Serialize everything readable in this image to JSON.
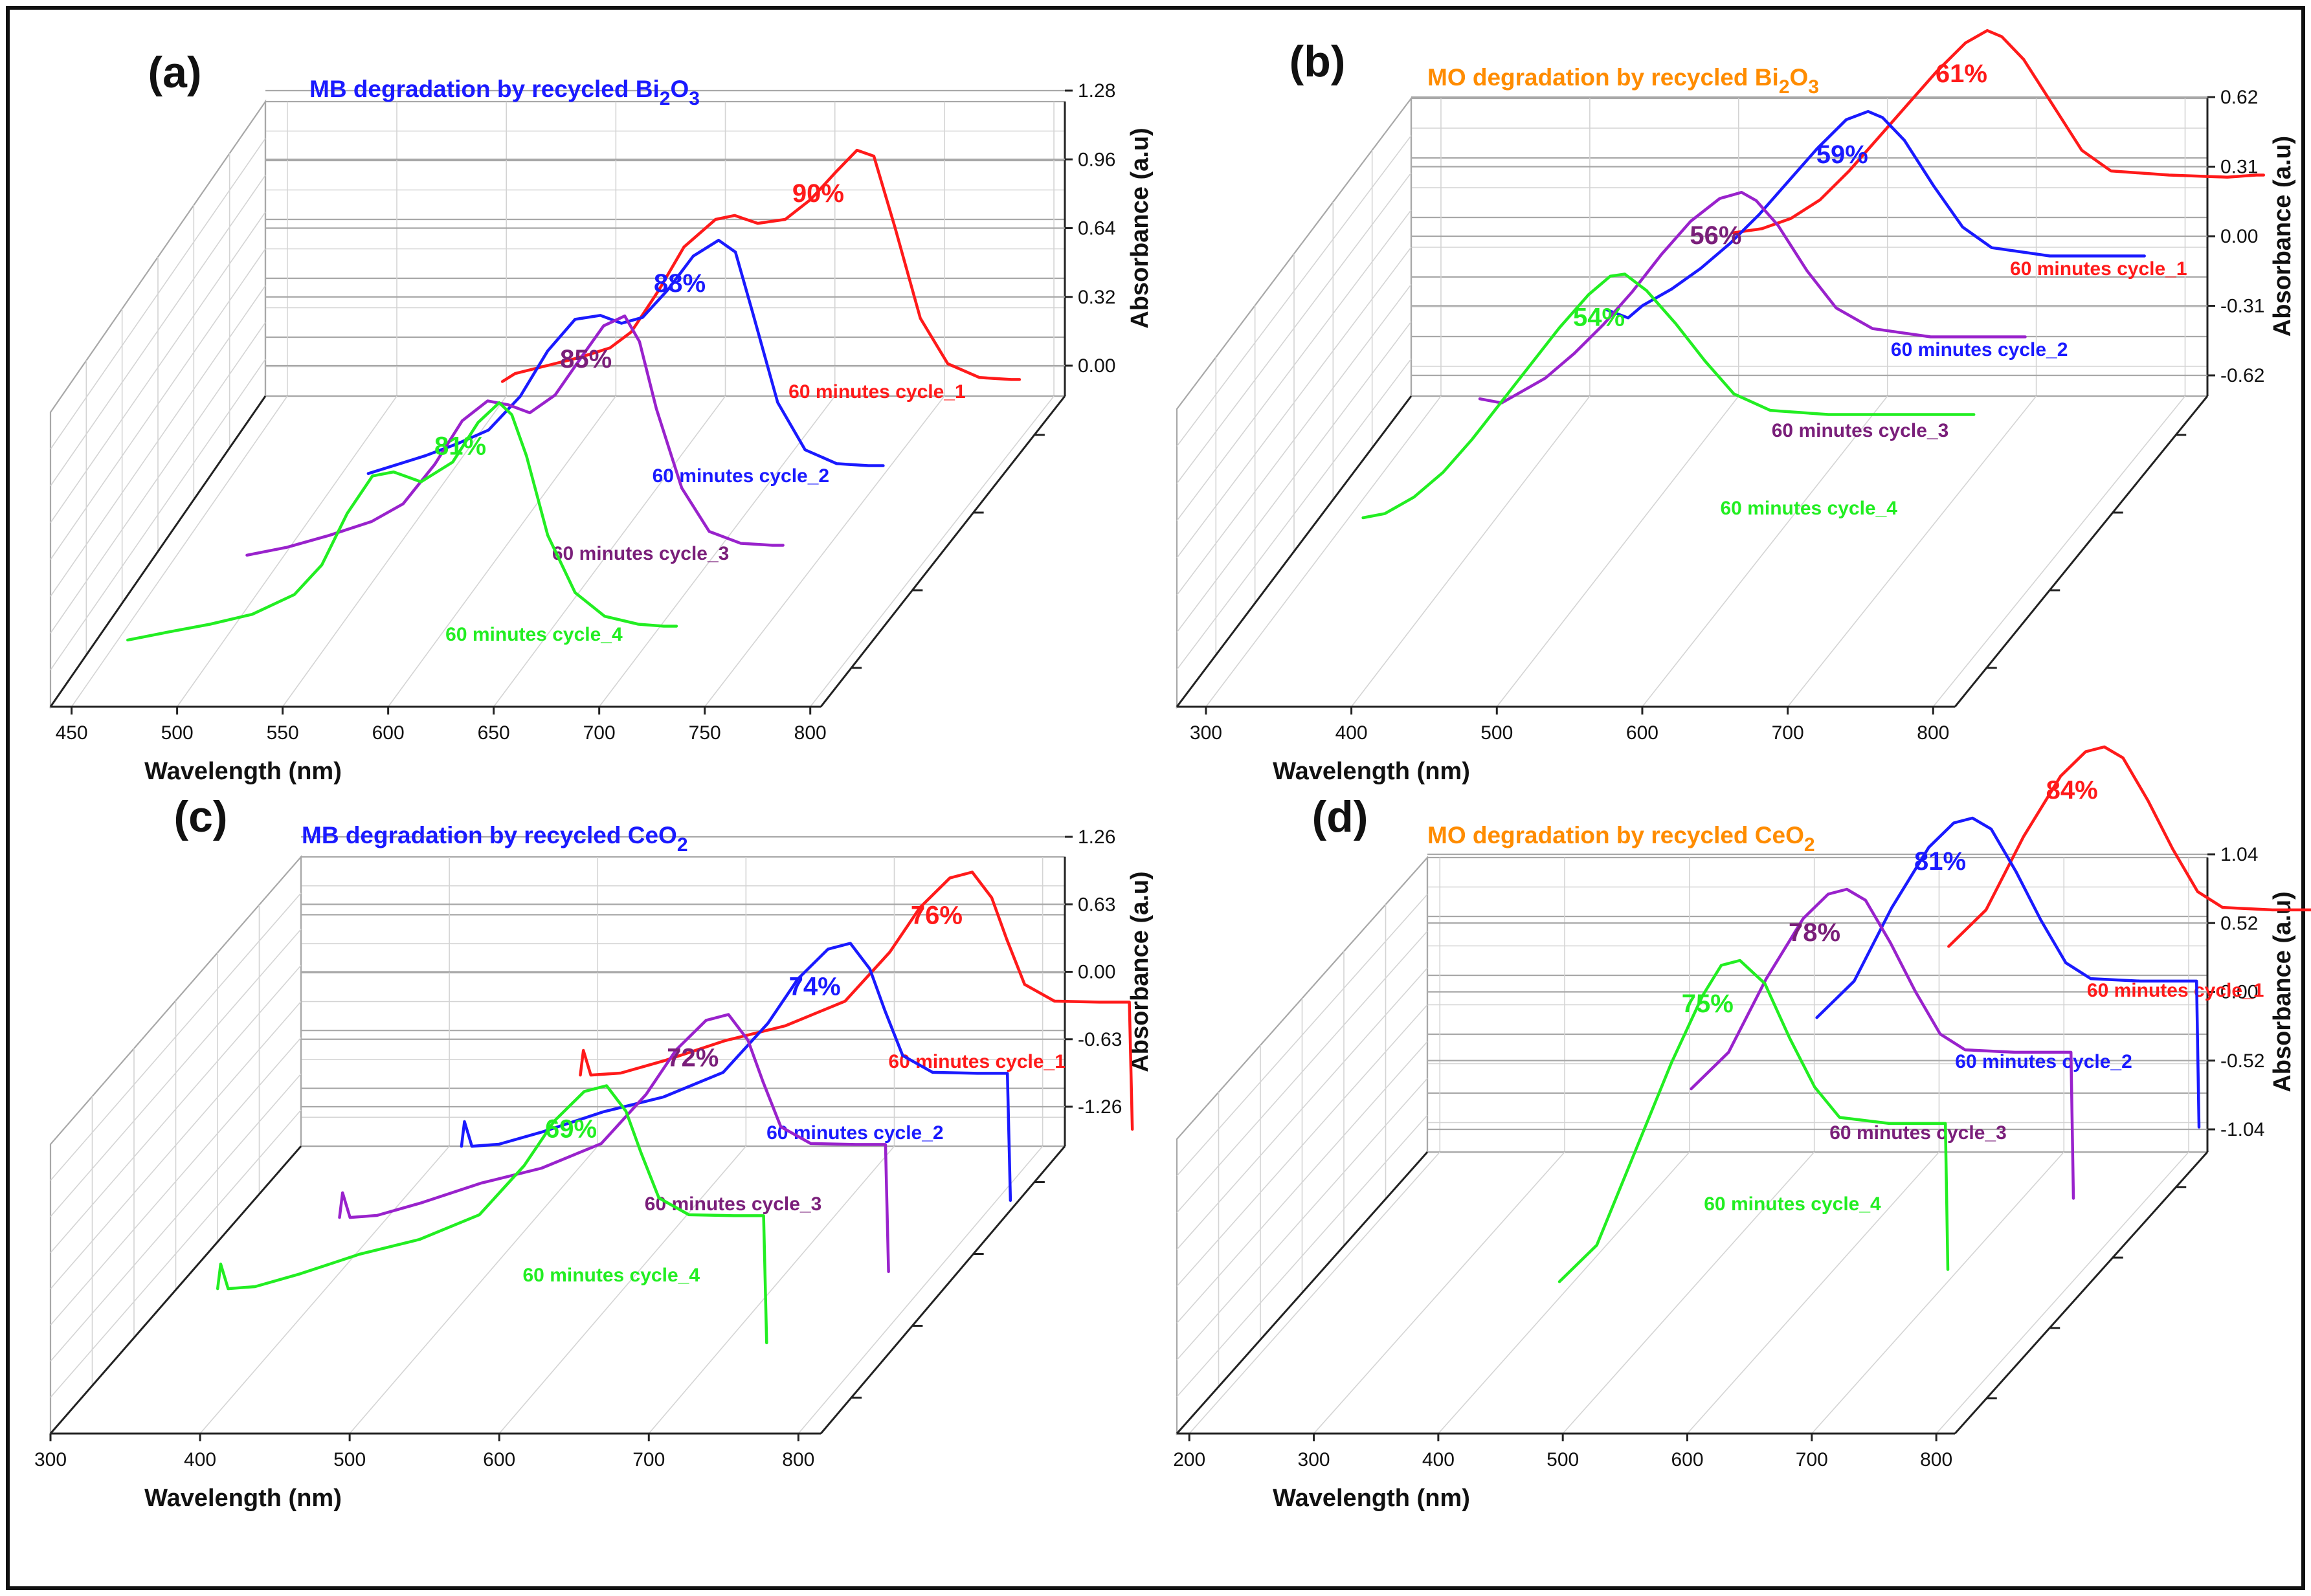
{
  "figure": {
    "colors": {
      "cycle_1": "#ff1a1a",
      "cycle_2": "#1a1aff",
      "cycle_3_label": "#7a1f7a",
      "cycle_3_line": "#9922cc",
      "cycle_4": "#22ee22",
      "title_blue": "#1a1aff",
      "title_orange": "#ff8c00"
    }
  },
  "chart_data": [
    {
      "panel": "(a)",
      "type": "line",
      "title_main": "MB degradation by recycled Bi",
      "title_parts": [
        "2",
        "O",
        "3"
      ],
      "title_color": "title_blue",
      "xlabel": "Wavelength (nm)",
      "ylabel": "Absorbance (a.u)",
      "xlim": [
        440,
        805
      ],
      "x_ticks": [
        450,
        500,
        550,
        600,
        650,
        700,
        750,
        800
      ],
      "z_ticks": [
        "1.28",
        "0.96",
        "0.64",
        "0.32",
        "0.00"
      ],
      "z_range": [
        0,
        1.28
      ],
      "series": [
        {
          "name": "60 minutes cycle_1",
          "color": "cycle_1",
          "percent": "90%",
          "x": [
            554,
            560,
            575,
            590,
            605,
            615,
            628,
            640,
            655,
            664,
            675,
            688,
            700,
            712,
            722,
            730,
            740,
            752,
            765,
            780,
            795,
            799
          ],
          "y": [
            0.1,
            0.14,
            0.18,
            0.22,
            0.27,
            0.35,
            0.56,
            0.78,
            0.92,
            0.94,
            0.9,
            0.92,
            1.02,
            1.16,
            1.27,
            1.24,
            0.88,
            0.42,
            0.19,
            0.12,
            0.11,
            0.11
          ]
        },
        {
          "name": "60 minutes cycle_2",
          "color": "cycle_2",
          "percent": "88%",
          "x": [
            518,
            530,
            545,
            560,
            575,
            590,
            603,
            616,
            628,
            638,
            648,
            660,
            672,
            684,
            692,
            700,
            712,
            725,
            740,
            755,
            762
          ],
          "y": [
            0.06,
            0.1,
            0.15,
            0.21,
            0.28,
            0.45,
            0.68,
            0.84,
            0.86,
            0.82,
            0.85,
            0.99,
            1.16,
            1.24,
            1.18,
            0.88,
            0.42,
            0.18,
            0.11,
            0.1,
            0.1
          ]
        },
        {
          "name": "60 minutes cycle_3",
          "color": "cycle_3_line",
          "label_color": "cycle_3_label",
          "percent": "85%",
          "x": [
            486,
            505,
            525,
            545,
            560,
            575,
            588,
            600,
            610,
            620,
            632,
            645,
            655,
            665,
            672,
            680,
            692,
            705,
            720,
            735,
            740
          ],
          "y": [
            0.04,
            0.08,
            0.14,
            0.21,
            0.3,
            0.5,
            0.72,
            0.82,
            0.8,
            0.76,
            0.85,
            1.05,
            1.2,
            1.25,
            1.12,
            0.78,
            0.38,
            0.16,
            0.1,
            0.09,
            0.09
          ]
        },
        {
          "name": "60 minutes cycle_4",
          "color": "cycle_4",
          "percent": "81%",
          "x": [
            456,
            475,
            495,
            515,
            535,
            548,
            560,
            572,
            582,
            595,
            610,
            622,
            632,
            638,
            645,
            655,
            668,
            682,
            698,
            710,
            716
          ],
          "y": [
            0.02,
            0.06,
            0.1,
            0.15,
            0.25,
            0.4,
            0.66,
            0.85,
            0.87,
            0.82,
            0.92,
            1.12,
            1.22,
            1.16,
            0.95,
            0.55,
            0.26,
            0.14,
            0.1,
            0.09,
            0.09
          ]
        }
      ]
    },
    {
      "panel": "(b)",
      "type": "line",
      "title_main": "MO degradation by recycled Bi",
      "title_parts": [
        "2",
        "O",
        "3"
      ],
      "title_color": "title_orange",
      "xlabel": "Wavelength (nm)",
      "ylabel": "Absorbance (a.u)",
      "xlim": [
        280,
        815
      ],
      "x_ticks": [
        300,
        400,
        500,
        600,
        700,
        800
      ],
      "z_ticks": [
        "0.62",
        "0.31",
        "0.00",
        "-0.31",
        "-0.62"
      ],
      "z_range": [
        -0.62,
        0.62
      ],
      "series": [
        {
          "name": "60 minutes cycle_1",
          "color": "cycle_1",
          "percent": "61%",
          "x": [
            440,
            460,
            480,
            500,
            520,
            540,
            560,
            580,
            600,
            615,
            625,
            640,
            660,
            680,
            700,
            740,
            780,
            800,
            805
          ],
          "y": [
            -0.4,
            -0.38,
            -0.33,
            -0.24,
            -0.1,
            0.06,
            0.22,
            0.38,
            0.52,
            0.58,
            0.55,
            0.44,
            0.22,
            0.0,
            -0.1,
            -0.12,
            -0.13,
            -0.12,
            -0.12
          ]
        },
        {
          "name": "60 minutes cycle_2",
          "color": "cycle_2",
          "percent": "59%",
          "x": [
            395,
            410,
            420,
            440,
            460,
            480,
            500,
            520,
            540,
            560,
            575,
            585,
            600,
            620,
            640,
            660,
            700,
            740,
            760,
            765
          ],
          "y": [
            -0.38,
            -0.42,
            -0.36,
            -0.28,
            -0.18,
            -0.06,
            0.08,
            0.24,
            0.4,
            0.54,
            0.58,
            0.55,
            0.44,
            0.22,
            0.02,
            -0.08,
            -0.12,
            -0.12,
            -0.12,
            -0.12
          ]
        },
        {
          "name": "60 minutes cycle_3",
          "color": "cycle_3_line",
          "label_color": "cycle_3_label",
          "percent": "56%",
          "x": [
            350,
            365,
            375,
            395,
            415,
            435,
            455,
            475,
            495,
            515,
            530,
            540,
            555,
            575,
            595,
            620,
            660,
            700,
            720,
            725
          ],
          "y": [
            -0.42,
            -0.44,
            -0.4,
            -0.32,
            -0.2,
            -0.06,
            0.1,
            0.28,
            0.44,
            0.55,
            0.58,
            0.54,
            0.42,
            0.2,
            0.02,
            -0.08,
            -0.12,
            -0.12,
            -0.12,
            -0.12
          ]
        },
        {
          "name": "60 minutes cycle_4",
          "color": "cycle_4",
          "percent": "54%",
          "x": [
            310,
            325,
            345,
            365,
            385,
            405,
            425,
            445,
            465,
            480,
            490,
            505,
            525,
            545,
            565,
            590,
            630,
            680,
            720,
            730
          ],
          "y": [
            -0.62,
            -0.6,
            -0.52,
            -0.4,
            -0.24,
            -0.06,
            0.12,
            0.3,
            0.46,
            0.55,
            0.56,
            0.48,
            0.32,
            0.14,
            -0.02,
            -0.1,
            -0.12,
            -0.12,
            -0.12,
            -0.12
          ]
        }
      ]
    },
    {
      "panel": "(c)",
      "type": "line",
      "title_main": "MB degradation by recycled CeO",
      "title_parts": [
        "2"
      ],
      "title_color": "title_blue",
      "xlabel": "Wavelength (nm)",
      "ylabel": "Absorbance (a.u)",
      "xlim": [
        300,
        815
      ],
      "x_ticks": [
        300,
        400,
        500,
        600,
        700,
        800
      ],
      "z_ticks": [
        "1.26",
        "0.63",
        "0.00",
        "-0.63",
        "-1.26"
      ],
      "z_range": [
        -1.26,
        1.26
      ],
      "series": [
        {
          "name": "60 minutes cycle_1",
          "color": "cycle_1",
          "percent": "76%",
          "x": [
            443,
            445,
            450,
            470,
            500,
            540,
            580,
            620,
            650,
            670,
            690,
            705,
            718,
            728,
            740,
            760,
            790,
            810,
            812
          ],
          "y": [
            -1.3,
            -1.05,
            -1.3,
            -1.28,
            -1.15,
            -0.95,
            -0.8,
            -0.55,
            -0.05,
            0.4,
            0.7,
            0.76,
            0.5,
            0.08,
            -0.38,
            -0.55,
            -0.56,
            -0.56,
            -1.85
          ]
        },
        {
          "name": "60 minutes cycle_2",
          "color": "cycle_2",
          "percent": "74%",
          "x": [
            405,
            407,
            412,
            430,
            460,
            500,
            540,
            580,
            610,
            630,
            650,
            665,
            678,
            688,
            700,
            720,
            750,
            770,
            772
          ],
          "y": [
            -1.3,
            -1.05,
            -1.3,
            -1.28,
            -1.15,
            -0.95,
            -0.8,
            -0.55,
            -0.05,
            0.4,
            0.7,
            0.76,
            0.5,
            0.08,
            -0.38,
            -0.55,
            -0.56,
            -0.56,
            -1.85
          ]
        },
        {
          "name": "60 minutes cycle_3",
          "color": "cycle_3_line",
          "label_color": "cycle_3_label",
          "percent": "72%",
          "x": [
            365,
            367,
            372,
            390,
            420,
            460,
            500,
            540,
            570,
            590,
            610,
            625,
            638,
            648,
            660,
            680,
            710,
            730,
            732
          ],
          "y": [
            -1.3,
            -1.05,
            -1.3,
            -1.28,
            -1.15,
            -0.95,
            -0.8,
            -0.55,
            -0.05,
            0.4,
            0.7,
            0.76,
            0.5,
            0.08,
            -0.38,
            -0.55,
            -0.56,
            -0.56,
            -1.85
          ]
        },
        {
          "name": "60 minutes cycle_4",
          "color": "cycle_4",
          "percent": "69%",
          "x": [
            325,
            327,
            332,
            350,
            380,
            420,
            460,
            500,
            530,
            550,
            570,
            585,
            598,
            608,
            620,
            640,
            670,
            690,
            692
          ],
          "y": [
            -1.3,
            -1.05,
            -1.3,
            -1.28,
            -1.15,
            -0.95,
            -0.8,
            -0.55,
            -0.05,
            0.4,
            0.7,
            0.76,
            0.5,
            0.08,
            -0.38,
            -0.55,
            -0.56,
            -0.56,
            -1.85
          ]
        }
      ]
    },
    {
      "panel": "(d)",
      "type": "line",
      "title_main": "MO degradation by recycled CeO",
      "title_parts": [
        "2"
      ],
      "title_color": "title_orange",
      "xlabel": "Wavelength (nm)",
      "ylabel": "Absorbance (a.u)",
      "xlim": [
        190,
        815
      ],
      "x_ticks": [
        200,
        300,
        400,
        500,
        600,
        700,
        800
      ],
      "z_ticks": [
        "1.04",
        "0.52",
        "0.00",
        "-0.52",
        "-1.04"
      ],
      "z_range": [
        -1.04,
        1.04
      ],
      "series": [
        {
          "name": "60 minutes cycle_1",
          "color": "cycle_1",
          "percent": "84%",
          "x": [
            500,
            530,
            560,
            590,
            610,
            625,
            640,
            660,
            680,
            700,
            720,
            760,
            800,
            805,
            807
          ],
          "y": [
            -0.6,
            -0.3,
            0.3,
            0.8,
            1.0,
            1.04,
            0.95,
            0.6,
            0.2,
            -0.15,
            -0.28,
            -0.3,
            -0.3,
            -0.3,
            -1.5
          ]
        },
        {
          "name": "60 minutes cycle_2",
          "color": "cycle_2",
          "percent": "81%",
          "x": [
            445,
            475,
            505,
            535,
            555,
            570,
            585,
            605,
            625,
            645,
            665,
            705,
            745,
            750,
            752
          ],
          "y": [
            -0.6,
            -0.3,
            0.3,
            0.8,
            1.0,
            1.04,
            0.95,
            0.6,
            0.2,
            -0.15,
            -0.28,
            -0.3,
            -0.3,
            -0.3,
            -1.5
          ]
        },
        {
          "name": "60 minutes cycle_3",
          "color": "cycle_3_line",
          "label_color": "cycle_3_label",
          "percent": "78%",
          "x": [
            395,
            425,
            455,
            485,
            505,
            520,
            535,
            555,
            575,
            595,
            615,
            655,
            695,
            700,
            702
          ],
          "y": [
            -0.6,
            -0.3,
            0.3,
            0.8,
            1.0,
            1.04,
            0.95,
            0.6,
            0.2,
            -0.15,
            -0.28,
            -0.3,
            -0.3,
            -0.3,
            -1.5
          ]
        },
        {
          "name": "60 minutes cycle_4",
          "color": "cycle_4",
          "percent": "75%",
          "x": [
            340,
            370,
            400,
            430,
            455,
            470,
            485,
            505,
            525,
            545,
            565,
            605,
            645,
            650,
            652
          ],
          "y": [
            -1.6,
            -1.3,
            -0.55,
            0.2,
            0.75,
            1.0,
            1.04,
            0.85,
            0.4,
            0.0,
            -0.25,
            -0.3,
            -0.3,
            -0.3,
            -1.5
          ]
        }
      ]
    }
  ]
}
